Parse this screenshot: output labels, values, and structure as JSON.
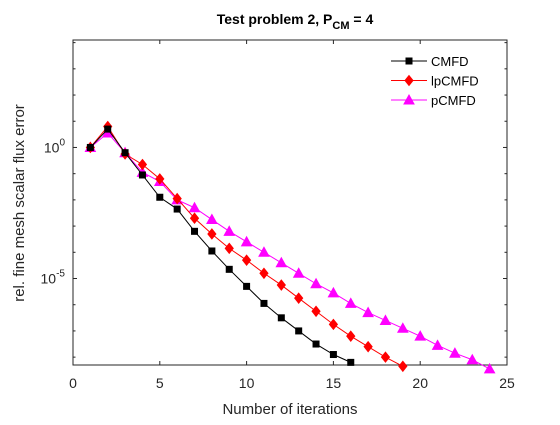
{
  "chart_data": {
    "type": "line",
    "title": {
      "main": "Test problem 2, P",
      "subscript": "CM",
      "suffix": " = 4"
    },
    "xlabel": "Number of iterations",
    "ylabel": "rel. fine mesh scalar flux error",
    "xlim": [
      0,
      25
    ],
    "ylim_log10": [
      -8.3,
      4.1
    ],
    "yscale": "log",
    "x_ticks": [
      {
        "value": 0,
        "label": "0"
      },
      {
        "value": 5,
        "label": "5"
      },
      {
        "value": 10,
        "label": "10"
      },
      {
        "value": 15,
        "label": "15"
      },
      {
        "value": 20,
        "label": "20"
      },
      {
        "value": 25,
        "label": "25"
      }
    ],
    "y_ticks": [
      {
        "exp": 0,
        "base": "10",
        "power": "0"
      },
      {
        "exp": -5,
        "base": "10",
        "power": "-5"
      }
    ],
    "grid": false,
    "legend_position": "top-right",
    "series": [
      {
        "name": "CMFD",
        "color": "#000000",
        "marker": "square",
        "x": [
          1,
          2,
          3,
          4,
          5,
          6,
          7,
          8,
          9,
          10,
          11,
          12,
          13,
          14,
          15,
          16
        ],
        "y_log10": [
          0.0,
          0.7,
          -0.2,
          -1.05,
          -1.9,
          -2.35,
          -3.2,
          -3.95,
          -4.65,
          -5.3,
          -5.95,
          -6.5,
          -7.0,
          -7.5,
          -7.9,
          -8.2
        ]
      },
      {
        "name": "lpCMFD",
        "color": "#ff0000",
        "marker": "diamond",
        "x": [
          1,
          2,
          3,
          4,
          5,
          6,
          7,
          8,
          9,
          10,
          11,
          12,
          13,
          14,
          15,
          16,
          17,
          18,
          19
        ],
        "y_log10": [
          0.0,
          0.8,
          -0.25,
          -0.65,
          -1.2,
          -1.95,
          -2.7,
          -3.3,
          -3.85,
          -4.3,
          -4.8,
          -5.25,
          -5.75,
          -6.25,
          -6.75,
          -7.2,
          -7.6,
          -8.0,
          -8.35
        ]
      },
      {
        "name": "pCMFD",
        "color": "#ff00ff",
        "marker": "triangle",
        "x": [
          1,
          2,
          3,
          4,
          5,
          6,
          7,
          8,
          9,
          10,
          11,
          12,
          13,
          14,
          15,
          16,
          17,
          18,
          19,
          20,
          21,
          22,
          23,
          24
        ],
        "y_log10": [
          0.0,
          0.55,
          -0.2,
          -0.95,
          -1.3,
          -2.0,
          -2.3,
          -2.75,
          -3.2,
          -3.6,
          -4.0,
          -4.4,
          -4.8,
          -5.2,
          -5.55,
          -5.95,
          -6.3,
          -6.6,
          -6.9,
          -7.2,
          -7.55,
          -7.85,
          -8.1,
          -8.45
        ]
      }
    ]
  }
}
